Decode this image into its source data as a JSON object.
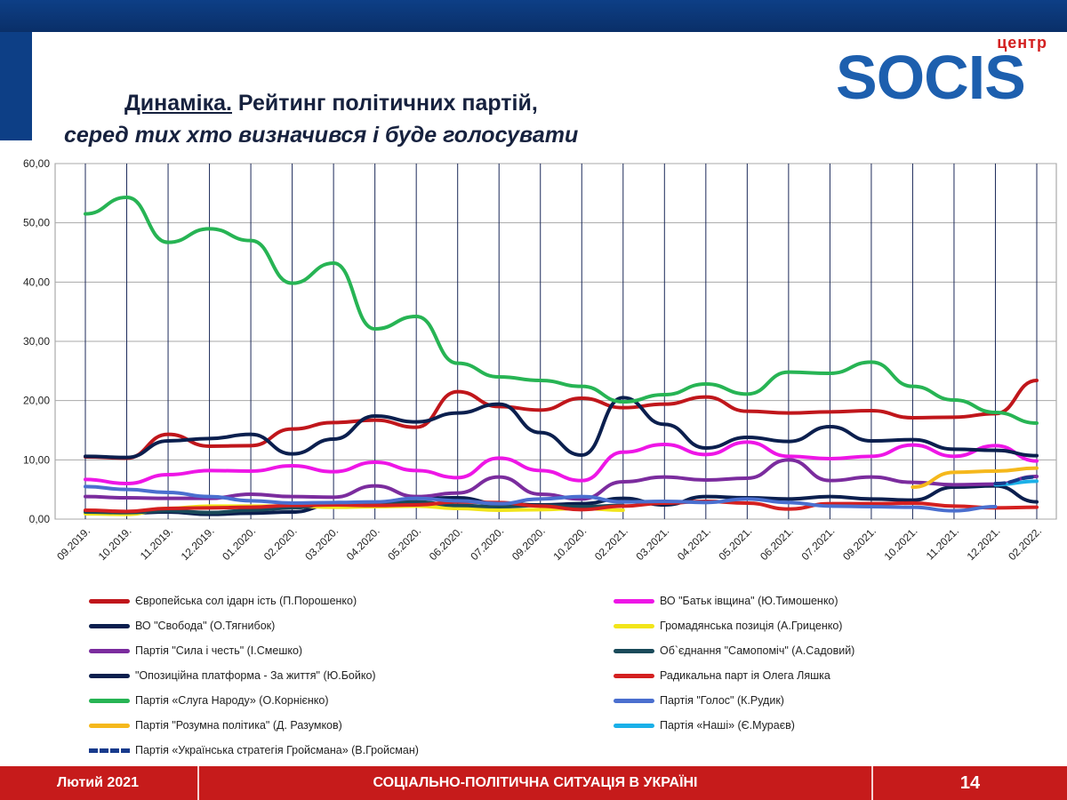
{
  "slide": {
    "title_underlined": "Динаміка.",
    "title_rest": " Рейтинг політичних партій,",
    "subtitle": "серед тих хто визначився  і буде голосувати",
    "logo_top": "центр",
    "logo_main": "SOCIS",
    "footer_left": "Лютий 2021",
    "footer_center": "СОЦІАЛЬНО-ПОЛІТИЧНА СИТУАЦІЯ  В УКРАЇНІ",
    "page_number": "14"
  },
  "chart_data": {
    "type": "line",
    "categories": [
      "09.2019.",
      "10.2019.",
      "11.2019.",
      "12.2019.",
      "01.2020.",
      "02.2020.",
      "03.2020.",
      "04.2020.",
      "05.2020.",
      "06.2020.",
      "07.2020.",
      "09.2020.",
      "10.2020.",
      "02.2021.",
      "03.2021.",
      "04.2021.",
      "05.2021.",
      "06.2021.",
      "07.2021.",
      "09.2021.",
      "10.2021.",
      "11.2021.",
      "12.2021.",
      "02.2022."
    ],
    "ylim": [
      0,
      60
    ],
    "yticks": [
      "0,00",
      "10,00",
      "20,00",
      "30,00",
      "40,00",
      "50,00",
      "60,00"
    ],
    "grid": true,
    "legend_position": "bottom",
    "series": [
      {
        "name": "Європейська сол   ідарн ість (П.Порошенко)",
        "color": "#c0161b",
        "style": "solid",
        "values": [
          10.5,
          10.3,
          14.3,
          12.3,
          12.4,
          15.2,
          16.3,
          16.7,
          15.5,
          21.5,
          19.0,
          18.4,
          20.4,
          18.8,
          19.4,
          20.6,
          18.2,
          17.9,
          18.1,
          18.3,
          17.1,
          17.2,
          17.8,
          23.4
        ]
      },
      {
        "name": "ВО \"Батьк івщина\" (Ю.Тимошенко)",
        "color": "#ee16e6",
        "style": "solid",
        "values": [
          6.7,
          6.0,
          7.5,
          8.2,
          8.1,
          9.0,
          8.0,
          9.6,
          8.2,
          7.0,
          10.3,
          8.2,
          6.5,
          11.3,
          12.6,
          10.9,
          13.0,
          10.6,
          10.2,
          10.6,
          12.5,
          10.6,
          12.4,
          9.8
        ]
      },
      {
        "name": "ВО \"Свобода\" (О.Тягнибок)",
        "color": "#0b1f4e",
        "style": "solid",
        "values": [
          1.4,
          1.0,
          1.2,
          0.8,
          1.0,
          1.2,
          2.5,
          2.8,
          3.5,
          3.6,
          2.6,
          2.4,
          2.6,
          3.5,
          2.4,
          3.8,
          3.6,
          3.4,
          3.8,
          3.4,
          3.2,
          5.4,
          5.6,
          2.9
        ]
      },
      {
        "name": "Громадянська позиція (А.Гриценко)",
        "color": "#f2e51a",
        "style": "solid",
        "values": [
          0.9,
          0.8,
          1.8,
          2.2,
          2.2,
          2.2,
          2.0,
          2.1,
          2.2,
          1.8,
          1.5,
          1.6,
          1.8,
          1.5,
          null,
          null,
          null,
          null,
          null,
          null,
          null,
          null,
          null,
          null
        ]
      },
      {
        "name": "Партія \"Сила і честь\" (І.Смешко)",
        "color": "#7b2c9e",
        "style": "solid",
        "values": [
          3.8,
          3.6,
          3.5,
          3.5,
          4.2,
          3.8,
          3.7,
          5.6,
          3.8,
          4.4,
          7.1,
          4.2,
          3.4,
          6.3,
          7.1,
          6.6,
          6.9,
          10.0,
          6.5,
          7.1,
          6.2,
          5.8,
          5.9,
          7.2
        ]
      },
      {
        "name": "Об`єднання \"Самопоміч\" (А.Садовий)",
        "color": "#1a4a5a",
        "style": "solid",
        "values": [
          1.2,
          1.1,
          1.4,
          1.1,
          1.5,
          1.9,
          2.7,
          2.7,
          2.9,
          2.3,
          2.1,
          2.3,
          2.1,
          2.3,
          null,
          null,
          null,
          null,
          null,
          null,
          null,
          null,
          null,
          null
        ]
      },
      {
        "name": "\"Опозиційна платформа     - За життя\" (Ю.Бойко)",
        "color": "#0b1f4e",
        "style": "solid",
        "values": [
          10.6,
          10.4,
          13.2,
          13.6,
          14.3,
          11.0,
          13.5,
          17.4,
          16.4,
          17.9,
          19.4,
          14.6,
          10.8,
          20.5,
          16.0,
          12.0,
          13.8,
          13.1,
          15.6,
          13.2,
          13.4,
          11.8,
          11.6,
          10.7
        ]
      },
      {
        "name": "Радикальна парт   ія Олега Ляшка",
        "color": "#d42020",
        "style": "solid",
        "values": [
          1.5,
          1.3,
          1.8,
          1.9,
          2.0,
          2.3,
          2.4,
          2.3,
          2.4,
          2.9,
          2.8,
          2.2,
          1.6,
          2.2,
          2.7,
          3.0,
          2.7,
          1.7,
          2.6,
          2.6,
          2.7,
          2.2,
          1.9,
          2.0
        ]
      },
      {
        "name": "Партія «Слуга Народу» (О.Корнієнко)",
        "color": "#27b454",
        "style": "solid",
        "values": [
          51.5,
          54.3,
          46.7,
          49.0,
          47.0,
          39.8,
          43.2,
          32.1,
          34.2,
          26.3,
          24.0,
          23.4,
          22.4,
          19.8,
          21.0,
          22.8,
          21.1,
          24.8,
          24.6,
          26.5,
          22.4,
          20.1,
          18.0,
          16.2
        ]
      },
      {
        "name": "Партія \"Голос\" (К.Рудик)",
        "color": "#4a6fcf",
        "style": "solid",
        "values": [
          5.5,
          5.0,
          4.5,
          3.8,
          3.1,
          2.7,
          2.8,
          2.9,
          3.5,
          3.1,
          2.6,
          3.4,
          3.8,
          2.9,
          3.0,
          2.8,
          3.4,
          2.8,
          2.2,
          2.1,
          2.0,
          1.4,
          2.1,
          null
        ]
      },
      {
        "name": "Партія \"Розумна політика\" (Д. Разумков)",
        "color": "#f5b81c",
        "style": "solid",
        "values": [
          null,
          null,
          null,
          null,
          null,
          null,
          null,
          null,
          null,
          null,
          null,
          null,
          null,
          null,
          null,
          null,
          null,
          null,
          null,
          null,
          5.4,
          7.9,
          8.1,
          8.6
        ]
      },
      {
        "name": "Партія «Наші» (Є.Мураєв)",
        "color": "#1ab0e8",
        "style": "solid",
        "values": [
          null,
          null,
          null,
          null,
          null,
          null,
          null,
          null,
          null,
          null,
          null,
          null,
          null,
          null,
          null,
          null,
          null,
          null,
          null,
          null,
          null,
          null,
          5.8,
          6.4
        ]
      },
      {
        "name": "Партія «Українська стратегія Гройсмана» (В.Гройсман)",
        "color": "#173a8c",
        "style": "dashed",
        "values": [
          null,
          null,
          null,
          null,
          null,
          null,
          null,
          null,
          null,
          null,
          null,
          null,
          null,
          null,
          null,
          null,
          null,
          null,
          null,
          null,
          null,
          null,
          6.0,
          7.1
        ]
      }
    ]
  }
}
